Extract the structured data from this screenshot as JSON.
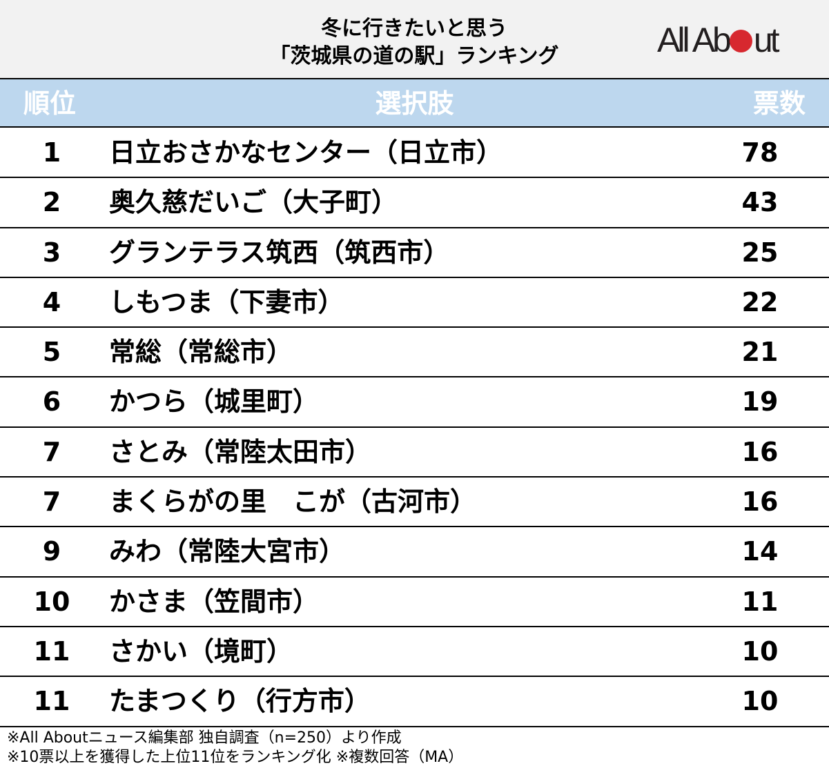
{
  "title": {
    "line1": "冬に行きたいと思う",
    "line2": "「茨城県の道の駅」ランキング"
  },
  "logo": {
    "pre": "All Ab",
    "post": "ut",
    "dot_color": "#d7282f"
  },
  "header": {
    "rank": "順位",
    "choice": "選択肢",
    "votes": "票数"
  },
  "rows": [
    {
      "rank": "1",
      "name": "日立おさかなセンター（日立市）",
      "votes": "78"
    },
    {
      "rank": "2",
      "name": "奥久慈だいご（大子町）",
      "votes": "43"
    },
    {
      "rank": "3",
      "name": "グランテラス筑西（筑西市）",
      "votes": "25"
    },
    {
      "rank": "4",
      "name": "しもつま（下妻市）",
      "votes": "22"
    },
    {
      "rank": "5",
      "name": "常総（常総市）",
      "votes": "21"
    },
    {
      "rank": "6",
      "name": "かつら（城里町）",
      "votes": "19"
    },
    {
      "rank": "7",
      "name": "さとみ（常陸太田市）",
      "votes": "16"
    },
    {
      "rank": "7",
      "name": "まくらがの里　こが（古河市）",
      "votes": "16"
    },
    {
      "rank": "9",
      "name": "みわ（常陸大宮市）",
      "votes": "14"
    },
    {
      "rank": "10",
      "name": "かさま（笠間市）",
      "votes": "11"
    },
    {
      "rank": "11",
      "name": "さかい（境町）",
      "votes": "10"
    },
    {
      "rank": "11",
      "name": "たまつくり（行方市）",
      "votes": "10"
    }
  ],
  "footer": {
    "line1": "※All Aboutニュース編集部 独自調査（n=250）より作成",
    "line2": "※10票以上を獲得した上位11位をランキング化 ※複数回答（MA）"
  },
  "colors": {
    "title_bg": "#f2f2f2",
    "header_bg": "#bdd7ee",
    "header_text": "#ffffff"
  },
  "chart_data": {
    "type": "table",
    "title": "冬に行きたいと思う「茨城県の道の駅」ランキング",
    "columns": [
      "順位",
      "選択肢",
      "票数"
    ],
    "categories": [
      "日立おさかなセンター（日立市）",
      "奥久慈だいご（大子町）",
      "グランテラス筑西（筑西市）",
      "しもつま（下妻市）",
      "常総（常総市）",
      "かつら（城里町）",
      "さとみ（常陸太田市）",
      "まくらがの里　こが（古河市）",
      "みわ（常陸大宮市）",
      "かさま（笠間市）",
      "さかい（境町）",
      "たまつくり（行方市）"
    ],
    "ranks": [
      1,
      2,
      3,
      4,
      5,
      6,
      7,
      7,
      9,
      10,
      11,
      11
    ],
    "values": [
      78,
      43,
      25,
      22,
      21,
      19,
      16,
      16,
      14,
      11,
      10,
      10
    ],
    "notes": [
      "※All Aboutニュース編集部 独自調査（n=250）より作成",
      "※10票以上を獲得した上位11位をランキング化 ※複数回答（MA）"
    ]
  }
}
